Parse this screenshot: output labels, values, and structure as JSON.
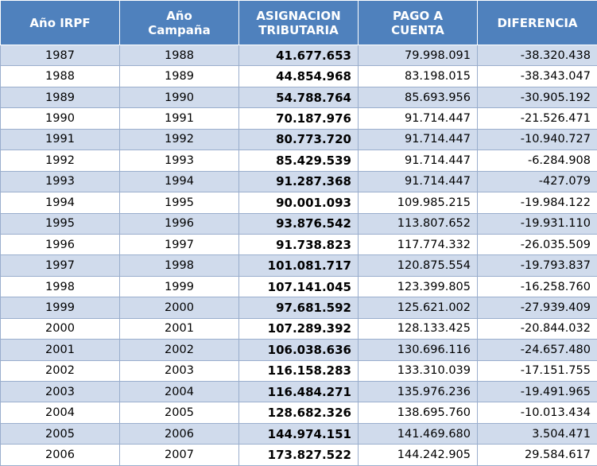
{
  "table": {
    "headers": [
      [
        "Año IRPF"
      ],
      [
        "Año",
        "Campaña"
      ],
      [
        "ASIGNACION",
        "TRIBUTARIA"
      ],
      [
        "PAGO A",
        "CUENTA"
      ],
      [
        "DIFERENCIA"
      ]
    ],
    "rows": [
      [
        "1987",
        "1988",
        "41.677.653",
        "79.998.091",
        "-38.320.438"
      ],
      [
        "1988",
        "1989",
        "44.854.968",
        "83.198.015",
        "-38.343.047"
      ],
      [
        "1989",
        "1990",
        "54.788.764",
        "85.693.956",
        "-30.905.192"
      ],
      [
        "1990",
        "1991",
        "70.187.976",
        "91.714.447",
        "-21.526.471"
      ],
      [
        "1991",
        "1992",
        "80.773.720",
        "91.714.447",
        "-10.940.727"
      ],
      [
        "1992",
        "1993",
        "85.429.539",
        "91.714.447",
        "-6.284.908"
      ],
      [
        "1993",
        "1994",
        "91.287.368",
        "91.714.447",
        "-427.079"
      ],
      [
        "1994",
        "1995",
        "90.001.093",
        "109.985.215",
        "-19.984.122"
      ],
      [
        "1995",
        "1996",
        "93.876.542",
        "113.807.652",
        "-19.931.110"
      ],
      [
        "1996",
        "1997",
        "91.738.823",
        "117.774.332",
        "-26.035.509"
      ],
      [
        "1997",
        "1998",
        "101.081.717",
        "120.875.554",
        "-19.793.837"
      ],
      [
        "1998",
        "1999",
        "107.141.045",
        "123.399.805",
        "-16.258.760"
      ],
      [
        "1999",
        "2000",
        "97.681.592",
        "125.621.002",
        "-27.939.409"
      ],
      [
        "2000",
        "2001",
        "107.289.392",
        "128.133.425",
        "-20.844.032"
      ],
      [
        "2001",
        "2002",
        "106.038.636",
        "130.696.116",
        "-24.657.480"
      ],
      [
        "2002",
        "2003",
        "116.158.283",
        "133.310.039",
        "-17.151.755"
      ],
      [
        "2003",
        "2004",
        "116.484.271",
        "135.976.236",
        "-19.491.965"
      ],
      [
        "2004",
        "2005",
        "128.682.326",
        "138.695.760",
        "-10.013.434"
      ],
      [
        "2005",
        "2006",
        "144.974.151",
        "141.469.680",
        "3.504.471"
      ],
      [
        "2006",
        "2007",
        "173.827.522",
        "144.242.905",
        "29.584.617"
      ]
    ]
  },
  "colors": {
    "header_bg": "#4f81bd",
    "header_text": "#ffffff",
    "band_row": "#d0dbec",
    "plain_row": "#ffffff",
    "grid": "#9aaecd"
  }
}
